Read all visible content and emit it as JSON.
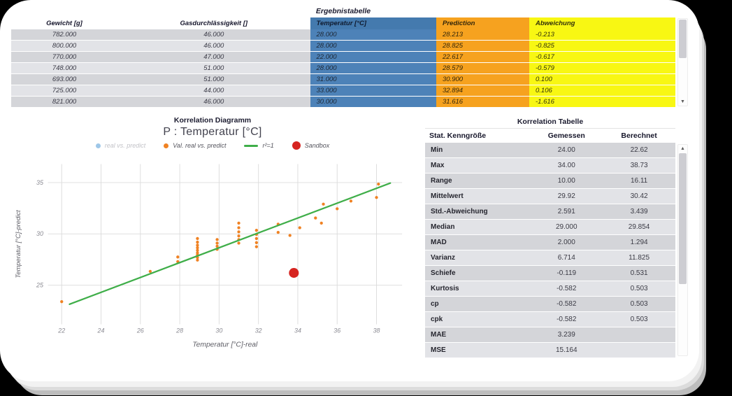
{
  "palette": {
    "page_bg": "#000000",
    "card_bg": "#ffffff",
    "temperatur_col": "#4d82b8",
    "temperatur_header": "#447aae",
    "prediction_col": "#f6a21f",
    "abweichung_col": "#f8f713",
    "row_dark": "#d4d5d9",
    "row_light": "#e2e3e7",
    "grid": "#dcdcdc"
  },
  "icons": {
    "scroll_up": "▲",
    "scroll_down": "▼"
  },
  "results_table": {
    "title": "Ergebnistabelle",
    "columns": [
      "Gewicht [g]",
      "Gasdurchlässigkeit []",
      "Temperatur [°C]",
      "Prediction",
      "Abweichung"
    ],
    "rows": [
      [
        "782.000",
        "46.000",
        "28.000",
        "28.213",
        "-0.213"
      ],
      [
        "800.000",
        "46.000",
        "28.000",
        "28.825",
        "-0.825"
      ],
      [
        "770.000",
        "47.000",
        "22.000",
        "22.617",
        "-0.617"
      ],
      [
        "748.000",
        "51.000",
        "28.000",
        "28.579",
        "-0.579"
      ],
      [
        "693.000",
        "51.000",
        "31.000",
        "30.900",
        "0.100"
      ],
      [
        "725.000",
        "44.000",
        "33.000",
        "32.894",
        "0.106"
      ],
      [
        "821.000",
        "46.000",
        "30.000",
        "31.616",
        "-1.616"
      ]
    ]
  },
  "chart_data": {
    "type": "scatter",
    "title": "Korrelation Diagramm",
    "subtitle": "P : Temperatur [°C]",
    "xlabel": "Temperatur [°C]-real",
    "ylabel": "Temperatur [°C]-predict",
    "x_ticks": [
      22,
      24,
      26,
      28,
      30,
      32,
      34,
      36,
      38
    ],
    "y_ticks": [
      25,
      30,
      35
    ],
    "xlim": [
      21.3,
      39.3
    ],
    "ylim": [
      21.2,
      36.8
    ],
    "grid": true,
    "legend_position": "top",
    "legend": [
      {
        "label": "real vs. predict",
        "color": "#9ec7e8",
        "marker": "dot",
        "muted": true
      },
      {
        "label": "Val. real vs. predict",
        "color": "#f08223",
        "marker": "dot",
        "muted": false
      },
      {
        "label": "r²=1",
        "color": "#3fae49",
        "marker": "line",
        "muted": false
      },
      {
        "label": "Sandbox",
        "color": "#d62420",
        "marker": "big-dot",
        "muted": false
      }
    ],
    "series": [
      {
        "name": "Val. real vs. predict",
        "type": "points",
        "color": "#f08223",
        "marker_size": 2.3,
        "points": [
          [
            22,
            23.4
          ],
          [
            26.5,
            26.35
          ],
          [
            27.9,
            27.3
          ],
          [
            27.9,
            27.75
          ],
          [
            28.9,
            27.45
          ],
          [
            28.9,
            27.7
          ],
          [
            28.9,
            27.95
          ],
          [
            28.9,
            28.15
          ],
          [
            28.9,
            28.4
          ],
          [
            28.9,
            28.65
          ],
          [
            28.9,
            28.9
          ],
          [
            28.9,
            29.2
          ],
          [
            28.9,
            29.55
          ],
          [
            29.9,
            28.5
          ],
          [
            29.9,
            28.8
          ],
          [
            29.9,
            29.1
          ],
          [
            29.9,
            29.45
          ],
          [
            31,
            29.1
          ],
          [
            31,
            29.45
          ],
          [
            31,
            29.8
          ],
          [
            31,
            30.2
          ],
          [
            31,
            30.6
          ],
          [
            31,
            31.05
          ],
          [
            31.9,
            28.75
          ],
          [
            31.9,
            29.15
          ],
          [
            31.9,
            29.55
          ],
          [
            31.9,
            29.95
          ],
          [
            31.9,
            30.35
          ],
          [
            33,
            30.15
          ],
          [
            33,
            30.95
          ],
          [
            33.6,
            29.85
          ],
          [
            34.1,
            30.6
          ],
          [
            34.9,
            31.55
          ],
          [
            35.2,
            31.05
          ],
          [
            35.3,
            32.9
          ],
          [
            36,
            32.45
          ],
          [
            36.7,
            33.2
          ],
          [
            38,
            33.55
          ],
          [
            38.1,
            34.85
          ]
        ]
      },
      {
        "name": "r²=1",
        "type": "line",
        "color": "#3fae49",
        "points": [
          [
            22.4,
            23.15
          ],
          [
            38.7,
            34.95
          ]
        ]
      },
      {
        "name": "Sandbox",
        "type": "points",
        "color": "#d62420",
        "marker_size": 7.5,
        "points": [
          [
            33.8,
            26.2
          ]
        ]
      }
    ]
  },
  "stats_table": {
    "title": "Korrelation Tabelle",
    "columns": [
      "Stat. Kenngröße",
      "Gemessen",
      "Berechnet"
    ],
    "rows": [
      [
        "Min",
        "24.00",
        "22.62"
      ],
      [
        "Max",
        "34.00",
        "38.73"
      ],
      [
        "Range",
        "10.00",
        "16.11"
      ],
      [
        "Mittelwert",
        "29.92",
        "30.42"
      ],
      [
        "Std.-Abweichung",
        "2.591",
        "3.439"
      ],
      [
        "Median",
        "29.000",
        "29.854"
      ],
      [
        "MAD",
        "2.000",
        "1.294"
      ],
      [
        "Varianz",
        "6.714",
        "11.825"
      ],
      [
        "Schiefe",
        "-0.119",
        "0.531"
      ],
      [
        "Kurtosis",
        "-0.582",
        "0.503"
      ],
      [
        "cp",
        "-0.582",
        "0.503"
      ],
      [
        "cpk",
        "-0.582",
        "0.503"
      ],
      [
        "MAE",
        "3.239",
        ""
      ],
      [
        "MSE",
        "15.164",
        ""
      ]
    ]
  }
}
